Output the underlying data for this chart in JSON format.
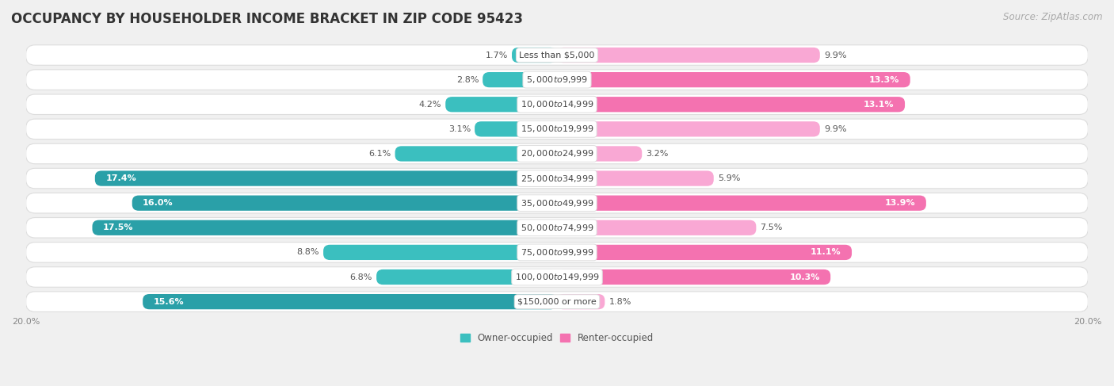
{
  "title": "OCCUPANCY BY HOUSEHOLDER INCOME BRACKET IN ZIP CODE 95423",
  "source": "Source: ZipAtlas.com",
  "categories": [
    "Less than $5,000",
    "$5,000 to $9,999",
    "$10,000 to $14,999",
    "$15,000 to $19,999",
    "$20,000 to $24,999",
    "$25,000 to $34,999",
    "$35,000 to $49,999",
    "$50,000 to $74,999",
    "$75,000 to $99,999",
    "$100,000 to $149,999",
    "$150,000 or more"
  ],
  "owner_values": [
    1.7,
    2.8,
    4.2,
    3.1,
    6.1,
    17.4,
    16.0,
    17.5,
    8.8,
    6.8,
    15.6
  ],
  "renter_values": [
    9.9,
    13.3,
    13.1,
    9.9,
    3.2,
    5.9,
    13.9,
    7.5,
    11.1,
    10.3,
    1.8
  ],
  "owner_color": "#3BBFBF",
  "owner_color_dark": "#2AA0A8",
  "renter_color": "#F472B0",
  "renter_color_light": "#F9A8D4",
  "owner_label": "Owner-occupied",
  "renter_label": "Renter-occupied",
  "xlim": 20.0,
  "bar_height": 0.62,
  "background_color": "#f0f0f0",
  "row_bg_color": "#ffffff",
  "row_border_color": "#dddddd",
  "title_fontsize": 12,
  "source_fontsize": 8.5,
  "value_fontsize": 8,
  "category_fontsize": 8,
  "axis_label_fontsize": 8
}
